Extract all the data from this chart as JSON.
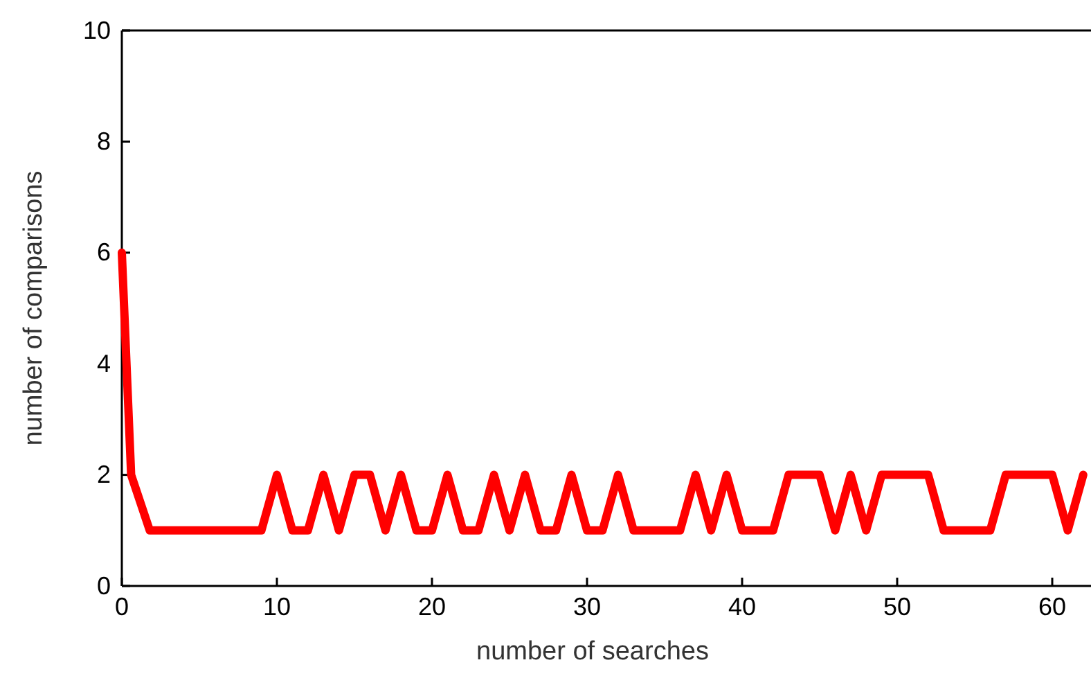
{
  "chart_data": {
    "type": "line",
    "xlabel": "number of searches",
    "ylabel": "number of comparisons",
    "xlim": [
      0,
      62.5
    ],
    "ylim": [
      0,
      10
    ],
    "xticks": [
      0,
      10,
      20,
      30,
      40,
      50,
      60
    ],
    "yticks": [
      0,
      2,
      4,
      6,
      8,
      10
    ],
    "marker": "none",
    "line_style": "solid",
    "series": [
      {
        "color": "#ff0000",
        "x": [
          0,
          0.6,
          1.8,
          9,
          10,
          11,
          12,
          13,
          14,
          15,
          16,
          17,
          18,
          19,
          20,
          21,
          22,
          23,
          24,
          25,
          26,
          27,
          28,
          29,
          30,
          31,
          32,
          33,
          36,
          37,
          38,
          39,
          40,
          42,
          43,
          45,
          46,
          47,
          48,
          49,
          52,
          53,
          56,
          57,
          60,
          61,
          62
        ],
        "values": [
          6,
          2,
          1,
          1,
          2,
          1,
          1,
          2,
          1,
          2,
          2,
          1,
          2,
          1,
          1,
          2,
          1,
          1,
          2,
          1,
          2,
          1,
          1,
          2,
          1,
          1,
          2,
          1,
          1,
          2,
          1,
          2,
          1,
          1,
          2,
          2,
          1,
          2,
          1,
          2,
          2,
          1,
          1,
          2,
          2,
          1,
          2
        ]
      }
    ]
  }
}
